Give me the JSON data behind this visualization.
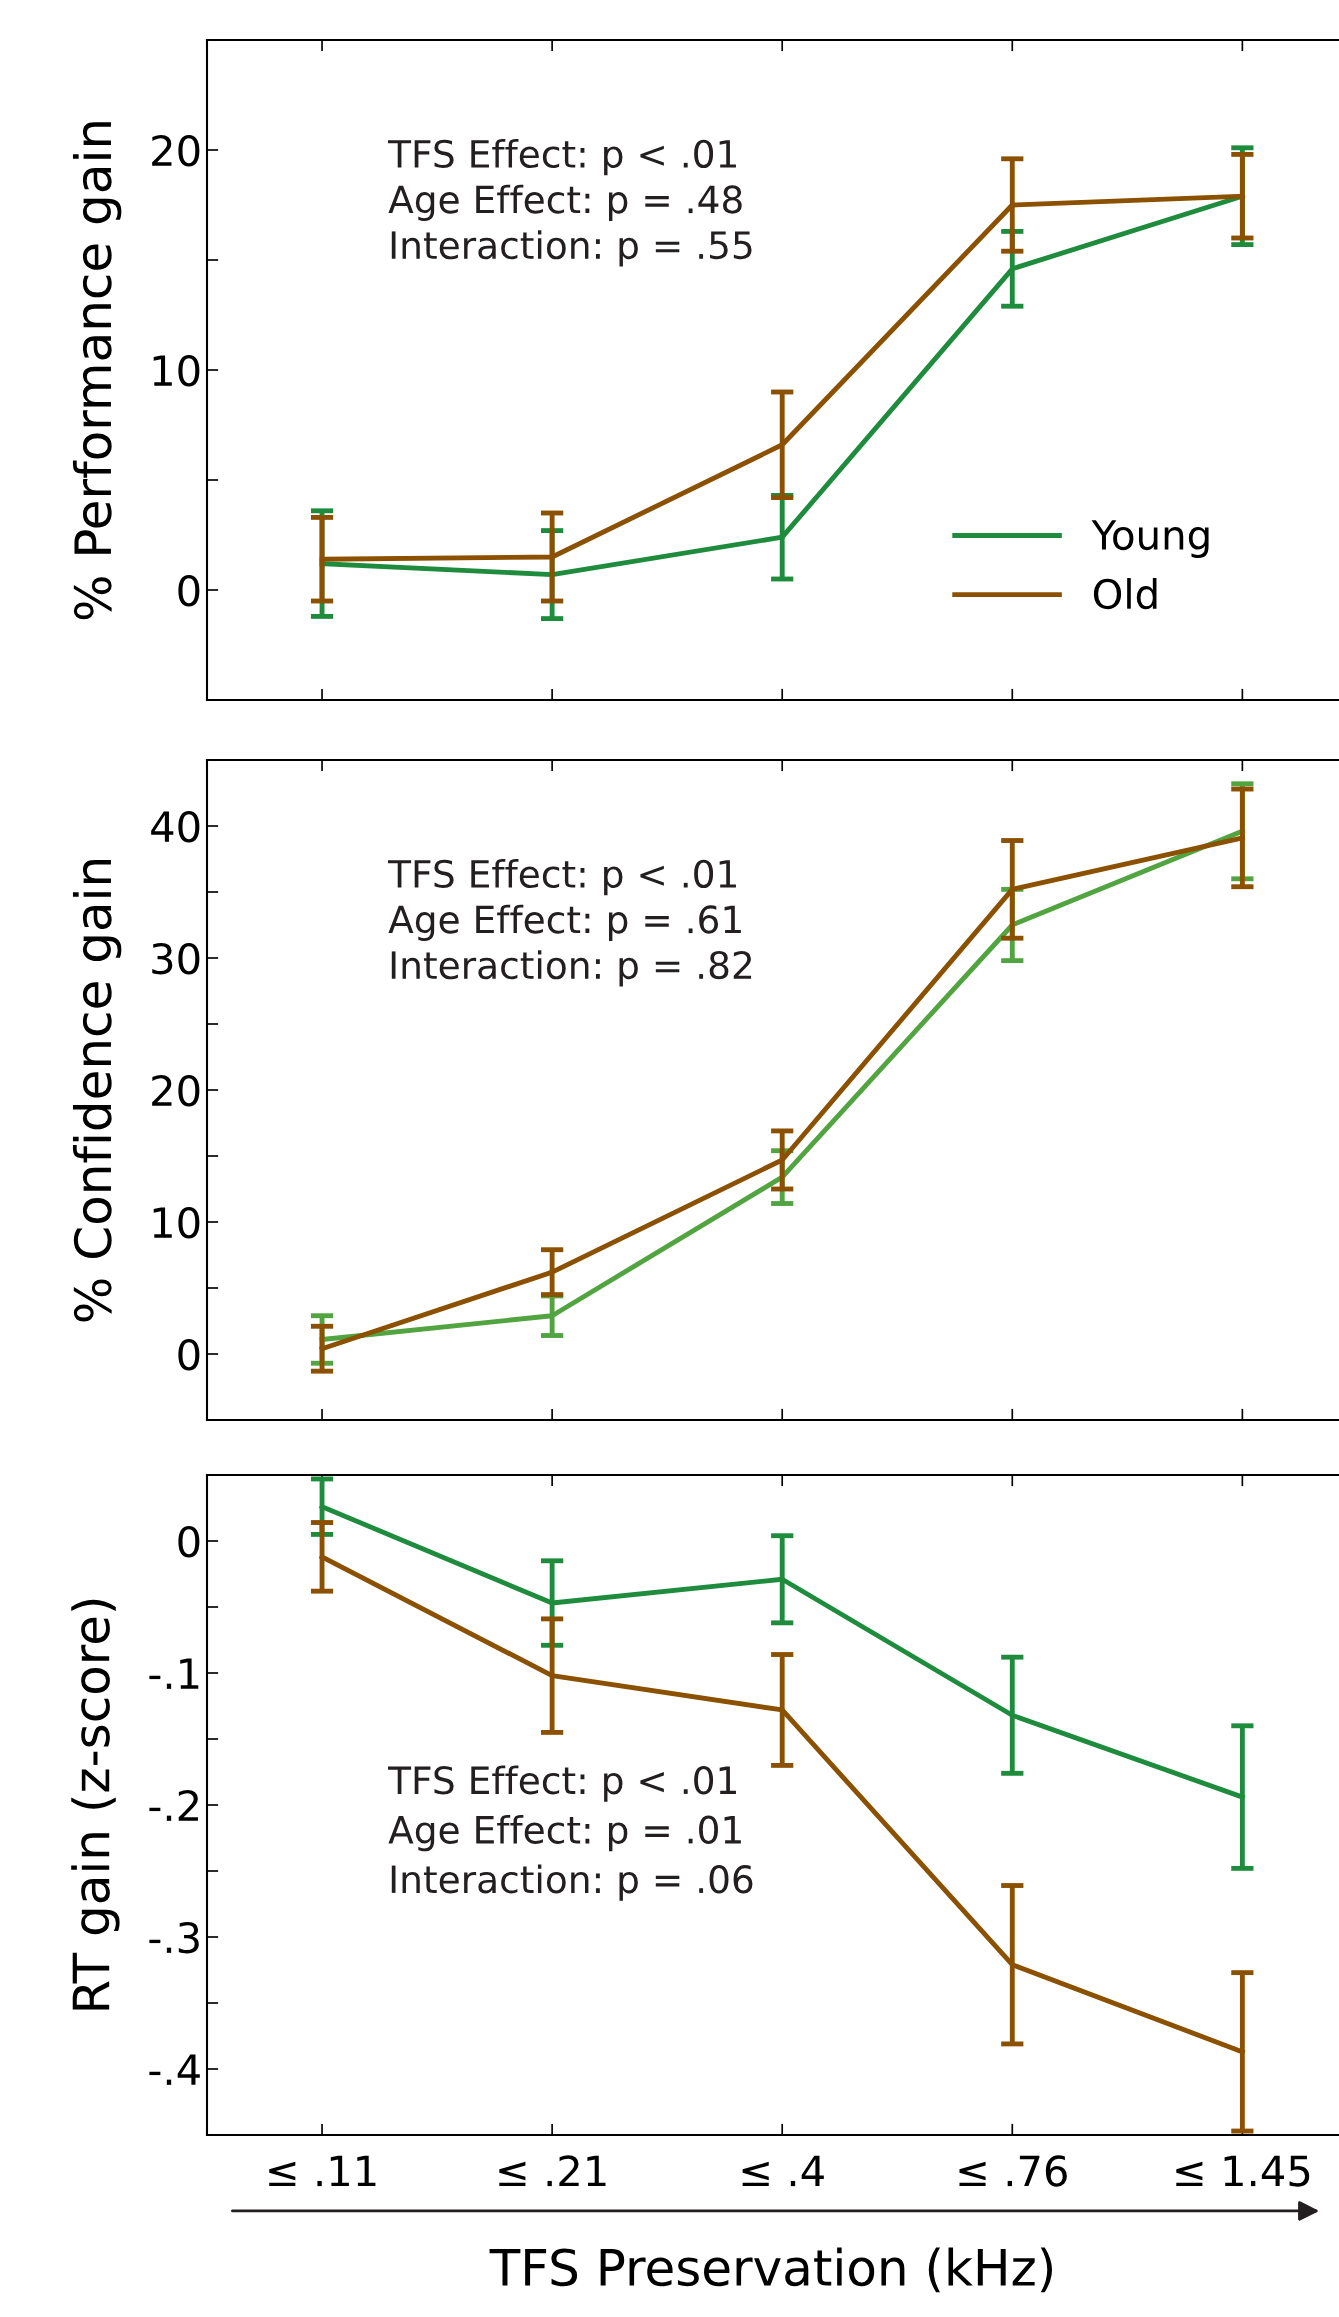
{
  "chart_data": [
    {
      "type": "line",
      "ylabel": "% Performance gain",
      "categories": [
        null,
        null,
        null,
        null,
        null
      ],
      "ylim": [
        -5,
        25
      ],
      "yticks": [
        0,
        {
          "value": 5,
          "label": null
        },
        10,
        {
          "value": 15,
          "label": null
        },
        20
      ],
      "tick_labels": "y",
      "legend": "right",
      "grid": false,
      "marker": "none",
      "line_style": "solid",
      "annotations": [
        "TFS Effect: p < .01",
        "Age Effect: p = .48",
        "Interaction: p = .55"
      ],
      "series": [
        {
          "name": "Young",
          "color": "#1e8c3c",
          "values": [
            1.2,
            0.7,
            2.4,
            14.6,
            17.9
          ],
          "errors": [
            2.4,
            2.0,
            1.9,
            1.7,
            2.2
          ]
        },
        {
          "name": "Old",
          "color": "#8b5000",
          "values": [
            1.4,
            1.5,
            6.6,
            17.5,
            17.9
          ],
          "errors": [
            1.9,
            2.0,
            2.4,
            2.1,
            1.9
          ]
        }
      ]
    },
    {
      "type": "line",
      "ylabel": "% Confidence gain",
      "categories": [
        null,
        null,
        null,
        null,
        null
      ],
      "ylim": [
        -5,
        45
      ],
      "yticks": [
        0,
        {
          "value": 5,
          "label": null
        },
        10,
        {
          "value": 15,
          "label": null
        },
        20,
        {
          "value": 25,
          "label": null
        },
        30,
        {
          "value": 35,
          "label": null
        },
        40
      ],
      "tick_labels": "y",
      "legend": false,
      "grid": false,
      "marker": "none",
      "line_style": "solid",
      "annotations": [
        "TFS Effect: p < .01",
        "Age Effect: p = .61",
        "Interaction: p = .82"
      ],
      "series": [
        {
          "color": "#52a441",
          "values": [
            1.1,
            2.9,
            13.4,
            32.5,
            39.6
          ],
          "errors": [
            1.8,
            1.5,
            2.0,
            2.7,
            3.6
          ]
        },
        {
          "color": "#8b5000",
          "values": [
            0.4,
            6.2,
            14.7,
            35.2,
            39.1
          ],
          "errors": [
            1.7,
            1.7,
            2.2,
            3.7,
            3.7
          ]
        }
      ]
    },
    {
      "type": "line",
      "ylabel": "RT gain (z-score)",
      "xlabel": "TFS Preservation (kHz)",
      "categories": [
        "≤ .11",
        "≤ .21",
        "≤ .4",
        "≤ .76",
        "≤ 1.45"
      ],
      "ylim": [
        -0.45,
        0.05
      ],
      "yticks": [
        {
          "value": -0.45,
          "label": null
        },
        {
          "value": -0.4,
          "label": "-.4"
        },
        {
          "value": -0.35,
          "label": null
        },
        {
          "value": -0.3,
          "label": "-.3"
        },
        {
          "value": -0.25,
          "label": null
        },
        {
          "value": -0.2,
          "label": "-.2"
        },
        {
          "value": -0.15,
          "label": null
        },
        {
          "value": -0.1,
          "label": "-.1"
        },
        {
          "value": -0.05,
          "label": null
        },
        0
      ],
      "legend": false,
      "grid": false,
      "marker": "none",
      "line_style": "solid",
      "annotations": [
        "TFS Effect: p < .01",
        "Age Effect: p = .01",
        "Interaction: p = .06"
      ],
      "series": [
        {
          "color": "#1e8c3c",
          "values": [
            0.026,
            -0.047,
            -0.029,
            -0.132,
            -0.194
          ],
          "errors": [
            0.021,
            0.032,
            0.033,
            0.044,
            0.054
          ]
        },
        {
          "color": "#8b5000",
          "values": [
            -0.012,
            -0.102,
            -0.128,
            -0.321,
            -0.387
          ],
          "errors": [
            0.026,
            0.043,
            0.042,
            0.06,
            0.06
          ]
        }
      ]
    }
  ]
}
